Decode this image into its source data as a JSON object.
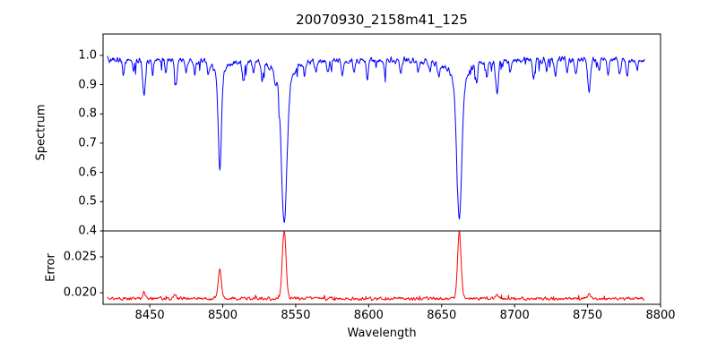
{
  "figure": {
    "background": "#ffffff",
    "axis_color": "#000000"
  },
  "chart_data": {
    "type": "line",
    "title": "20070930_2158m41_125",
    "xlabel": "Wavelength",
    "xlim": [
      8418,
      8800
    ],
    "xticks": [
      8450,
      8500,
      8550,
      8600,
      8650,
      8700,
      8750,
      8800
    ],
    "xtick_labels": [
      "8450",
      "8500",
      "8550",
      "8600",
      "8650",
      "8700",
      "8750",
      "8800"
    ],
    "x_data_range": [
      8421,
      8789
    ],
    "legend": "none",
    "grid": false,
    "subplots": [
      {
        "ylabel": "Spectrum",
        "ylim": [
          0.4,
          1.073
        ],
        "yticks": [
          0.4,
          0.5,
          0.6,
          0.7,
          0.8,
          0.9,
          1.0
        ],
        "ytick_labels": [
          "0.4",
          "0.5",
          "0.6",
          "0.7",
          "0.8",
          "0.9",
          "1.0"
        ],
        "line_color": "#0000ff",
        "continuum": 0.985,
        "noise_sigma": 0.008,
        "major_lines": [
          {
            "center": 8498.0,
            "gauss_depth": 0.3,
            "gauss_sigma": 1.0,
            "lorentz_depth": 0.08,
            "lorentz_gamma": 3.0
          },
          {
            "center": 8542.1,
            "gauss_depth": 0.44,
            "gauss_sigma": 1.8,
            "lorentz_depth": 0.12,
            "lorentz_gamma": 5.0
          },
          {
            "center": 8662.1,
            "gauss_depth": 0.42,
            "gauss_sigma": 1.6,
            "lorentz_depth": 0.12,
            "lorentz_gamma": 5.0
          }
        ],
        "minor_lines": [
          {
            "center": 8432,
            "depth": 0.05,
            "sigma": 0.7
          },
          {
            "center": 8439,
            "depth": 0.04,
            "sigma": 0.6
          },
          {
            "center": 8446,
            "depth": 0.12,
            "sigma": 0.9
          },
          {
            "center": 8452,
            "depth": 0.05,
            "sigma": 0.6
          },
          {
            "center": 8461,
            "depth": 0.04,
            "sigma": 0.6
          },
          {
            "center": 8468,
            "depth": 0.08,
            "sigma": 0.8
          },
          {
            "center": 8475,
            "depth": 0.04,
            "sigma": 0.6
          },
          {
            "center": 8481,
            "depth": 0.05,
            "sigma": 0.6
          },
          {
            "center": 8490,
            "depth": 0.04,
            "sigma": 0.6
          },
          {
            "center": 8514,
            "depth": 0.07,
            "sigma": 0.8
          },
          {
            "center": 8521,
            "depth": 0.04,
            "sigma": 0.6
          },
          {
            "center": 8527,
            "depth": 0.06,
            "sigma": 0.7
          },
          {
            "center": 8536,
            "depth": 0.04,
            "sigma": 0.6
          },
          {
            "center": 8556,
            "depth": 0.04,
            "sigma": 0.6
          },
          {
            "center": 8564,
            "depth": 0.04,
            "sigma": 0.6
          },
          {
            "center": 8572,
            "depth": 0.04,
            "sigma": 0.6
          },
          {
            "center": 8582,
            "depth": 0.05,
            "sigma": 0.7
          },
          {
            "center": 8590,
            "depth": 0.04,
            "sigma": 0.6
          },
          {
            "center": 8599,
            "depth": 0.06,
            "sigma": 0.7
          },
          {
            "center": 8611,
            "depth": 0.04,
            "sigma": 0.6
          },
          {
            "center": 8622,
            "depth": 0.05,
            "sigma": 0.7
          },
          {
            "center": 8634,
            "depth": 0.04,
            "sigma": 0.6
          },
          {
            "center": 8642,
            "depth": 0.04,
            "sigma": 0.6
          },
          {
            "center": 8648,
            "depth": 0.05,
            "sigma": 0.7
          },
          {
            "center": 8674,
            "depth": 0.06,
            "sigma": 0.7
          },
          {
            "center": 8681,
            "depth": 0.05,
            "sigma": 0.7
          },
          {
            "center": 8688,
            "depth": 0.11,
            "sigma": 0.9
          },
          {
            "center": 8697,
            "depth": 0.04,
            "sigma": 0.6
          },
          {
            "center": 8713,
            "depth": 0.06,
            "sigma": 0.8
          },
          {
            "center": 8722,
            "depth": 0.04,
            "sigma": 0.6
          },
          {
            "center": 8728,
            "depth": 0.05,
            "sigma": 0.7
          },
          {
            "center": 8736,
            "depth": 0.04,
            "sigma": 0.6
          },
          {
            "center": 8742,
            "depth": 0.05,
            "sigma": 0.7
          },
          {
            "center": 8751,
            "depth": 0.11,
            "sigma": 0.9
          },
          {
            "center": 8758,
            "depth": 0.04,
            "sigma": 0.6
          },
          {
            "center": 8764,
            "depth": 0.05,
            "sigma": 0.7
          },
          {
            "center": 8772,
            "depth": 0.05,
            "sigma": 0.7
          },
          {
            "center": 8777,
            "depth": 0.06,
            "sigma": 0.7
          },
          {
            "center": 8784,
            "depth": 0.04,
            "sigma": 0.6
          }
        ]
      },
      {
        "ylabel": "Error",
        "ylim": [
          0.0184,
          0.0286
        ],
        "yticks": [
          0.02,
          0.025
        ],
        "ytick_labels": [
          "0.020",
          "0.025"
        ],
        "line_color": "#ff0000",
        "baseline": 0.0192,
        "noise_sigma": 0.00018,
        "peaks": [
          {
            "center": 8498.0,
            "height": 0.0042,
            "sigma": 1.1
          },
          {
            "center": 8542.1,
            "height": 0.0093,
            "sigma": 1.3
          },
          {
            "center": 8662.1,
            "height": 0.0092,
            "sigma": 1.2
          },
          {
            "center": 8446.0,
            "height": 0.0009,
            "sigma": 0.9
          },
          {
            "center": 8467.0,
            "height": 0.0006,
            "sigma": 0.8
          },
          {
            "center": 8688.0,
            "height": 0.0006,
            "sigma": 0.9
          },
          {
            "center": 8751.0,
            "height": 0.0007,
            "sigma": 0.9
          }
        ]
      }
    ]
  }
}
